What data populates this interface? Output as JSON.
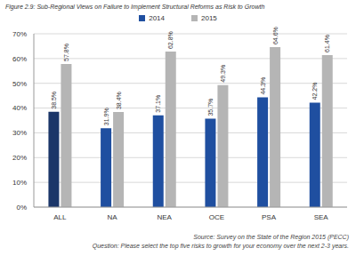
{
  "chart_data": {
    "type": "bar",
    "title": "Figure 2.9: Sub-Regional Views on Failure to Implement Structural Reforms as Risk to Growth",
    "categories": [
      "ALL",
      "NA",
      "NEA",
      "OCE",
      "PSA",
      "SEA"
    ],
    "series": [
      {
        "name": "2014",
        "color": "#1f4fa0",
        "colors": [
          "#1b3669",
          "#1f4fa0",
          "#1f4fa0",
          "#1f4fa0",
          "#1f4fa0",
          "#1f4fa0"
        ],
        "values": [
          38.5,
          31.9,
          37.1,
          35.7,
          44.3,
          42.2
        ],
        "value_labels": [
          "38.5%",
          "31.9%",
          "37.1%",
          "35.7%",
          "44.3%",
          "42.2%"
        ]
      },
      {
        "name": "2015",
        "color": "#b5b5b5",
        "colors": [
          "#b5b5b5",
          "#b5b5b5",
          "#b5b5b5",
          "#b5b5b5",
          "#b5b5b5",
          "#b5b5b5"
        ],
        "values": [
          57.8,
          38.4,
          62.8,
          49.3,
          64.6,
          61.4
        ],
        "value_labels": [
          "57.8%",
          "38.4%",
          "62.8%",
          "49.3%",
          "64.6%",
          "61.4%"
        ]
      }
    ],
    "ylim": [
      0,
      70
    ],
    "yticks": [
      {
        "value": 0,
        "label": "0%"
      },
      {
        "value": 10,
        "label": "10%"
      },
      {
        "value": 20,
        "label": "20%"
      },
      {
        "value": 30,
        "label": "30%"
      },
      {
        "value": 40,
        "label": "40%"
      },
      {
        "value": 50,
        "label": "50%"
      },
      {
        "value": 60,
        "label": "60%"
      },
      {
        "value": 70,
        "label": "70%"
      }
    ],
    "grid": true,
    "data_labels": true,
    "legend": "top",
    "annotations": [
      "Source: Survey on the State of the Region 2015 (PECC)",
      "Question: Please select the top five risks to growth for your economy over the next 2-3 years."
    ]
  }
}
